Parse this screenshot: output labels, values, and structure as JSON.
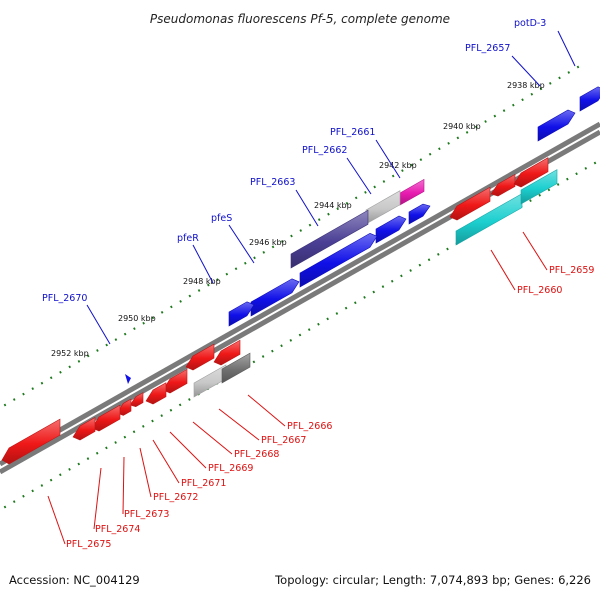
{
  "title": "Pseudomonas fluorescens Pf-5, complete genome",
  "footer": {
    "accession": "Accession: NC_004129",
    "summary": "Topology: circular; Length: 7,074,893 bp; Genes: 6,226"
  },
  "colors": {
    "red": "#ef1818",
    "blue": "#1010e8",
    "dark_purple": "#4a3f95",
    "light_gray": "#c8c8c8",
    "dark_gray": "#707070",
    "magenta": "#e81ab0",
    "cyan": "#1ccfcf",
    "backbone": "#7a7a7a",
    "tick_green": "#1e7a1e",
    "label_blue": "#1010cc",
    "label_red": "#dd1111"
  },
  "kbp_ticks": [
    "2938 kbp",
    "2940 kbp",
    "2942 kbp",
    "2944 kbp",
    "2946 kbp",
    "2948 kbp",
    "2950 kbp",
    "2952 kbp"
  ],
  "genes_forward": [
    "potD-3",
    "PFL_2657",
    "PFL_2661",
    "PFL_2662",
    "PFL_2663",
    "pfeS",
    "pfeR",
    "PFL_2670"
  ],
  "genes_reverse": [
    "PFL_2659",
    "PFL_2660",
    "PFL_2666",
    "PFL_2667",
    "PFL_2668",
    "PFL_2669",
    "PFL_2671",
    "PFL_2672",
    "PFL_2673",
    "PFL_2674",
    "PFL_2675"
  ]
}
